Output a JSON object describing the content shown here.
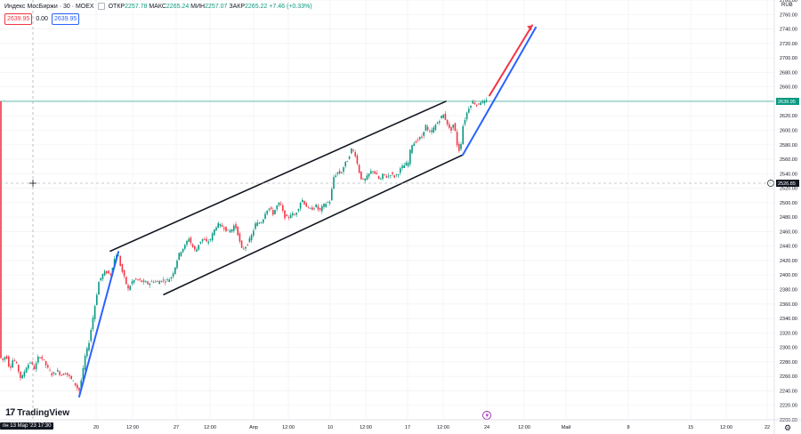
{
  "header": {
    "symbol": "Индекс МосБиржи · 30 · MOEX",
    "open_label": "ОТКР",
    "open": "2257.78",
    "high_label": "МАКС",
    "high": "2265.24",
    "low_label": "МИН",
    "low": "2257.07",
    "close_label": "ЗАКР",
    "close": "2265.22",
    "change": "+7.46 (+0.33%)"
  },
  "badges": {
    "left_price": "2639.95",
    "mid": "0.00",
    "right_price": "2639.95"
  },
  "branding": {
    "logo_text": "TradingView",
    "logo_mark": "17"
  },
  "crosshair_time": "пн 13 Мар '23  17:30",
  "currency": "RUB",
  "colors": {
    "up": "#089981",
    "down": "#f23645",
    "channel": "#131722",
    "impulse": "#2962ff",
    "target": "#f23645",
    "last_line": "#089981"
  },
  "chart_data": {
    "type": "candlestick",
    "title": "Индекс МосБиржи · 30 · MOEX",
    "ylim": [
      2200,
      2780
    ],
    "yticks": [
      2200,
      2220,
      2240,
      2260,
      2280,
      2300,
      2320,
      2340,
      2360,
      2380,
      2400,
      2420,
      2440,
      2460,
      2480,
      2500,
      2520,
      2540,
      2560,
      2580,
      2600,
      2620,
      2640,
      2660,
      2680,
      2700,
      2720,
      2740,
      2760,
      2780
    ],
    "x_axis_labels": [
      "20",
      "12:00",
      "27",
      "12:00",
      "Апр",
      "12:00",
      "10",
      "12:00",
      "17",
      "12:00",
      "24",
      "12:00",
      "Май",
      "8",
      "15",
      "12:00",
      "22"
    ],
    "last_price": "2639.95",
    "crosshair_price": "2526.85",
    "price_path": [
      [
        0,
        2288
      ],
      [
        4,
        2282
      ],
      [
        8,
        2290
      ],
      [
        12,
        2270
      ],
      [
        16,
        2285
      ],
      [
        20,
        2275
      ],
      [
        25,
        2255
      ],
      [
        30,
        2272
      ],
      [
        35,
        2280
      ],
      [
        40,
        2270
      ],
      [
        45,
        2290
      ],
      [
        50,
        2282
      ],
      [
        55,
        2270
      ],
      [
        60,
        2262
      ],
      [
        65,
        2268
      ],
      [
        70,
        2262
      ],
      [
        75,
        2265
      ],
      [
        80,
        2258
      ],
      [
        85,
        2250
      ],
      [
        90,
        2240
      ],
      [
        94,
        2265
      ],
      [
        97,
        2290
      ],
      [
        100,
        2300
      ],
      [
        104,
        2330
      ],
      [
        108,
        2360
      ],
      [
        112,
        2390
      ],
      [
        116,
        2400
      ],
      [
        120,
        2405
      ],
      [
        125,
        2400
      ],
      [
        129,
        2420
      ],
      [
        133,
        2432
      ],
      [
        137,
        2410
      ],
      [
        141,
        2395
      ],
      [
        145,
        2380
      ],
      [
        149,
        2390
      ],
      [
        153,
        2394
      ],
      [
        158,
        2392
      ],
      [
        163,
        2390
      ],
      [
        168,
        2388
      ],
      [
        173,
        2392
      ],
      [
        178,
        2390
      ],
      [
        183,
        2393
      ],
      [
        188,
        2392
      ],
      [
        193,
        2396
      ],
      [
        197,
        2408
      ],
      [
        201,
        2425
      ],
      [
        205,
        2435
      ],
      [
        209,
        2440
      ],
      [
        213,
        2452
      ],
      [
        217,
        2440
      ],
      [
        221,
        2432
      ],
      [
        225,
        2445
      ],
      [
        229,
        2450
      ],
      [
        233,
        2445
      ],
      [
        237,
        2448
      ],
      [
        241,
        2460
      ],
      [
        245,
        2470
      ],
      [
        249,
        2468
      ],
      [
        253,
        2466
      ],
      [
        257,
        2460
      ],
      [
        261,
        2462
      ],
      [
        265,
        2470
      ],
      [
        269,
        2455
      ],
      [
        272,
        2435
      ],
      [
        276,
        2438
      ],
      [
        280,
        2445
      ],
      [
        284,
        2455
      ],
      [
        288,
        2470
      ],
      [
        292,
        2472
      ],
      [
        296,
        2475
      ],
      [
        300,
        2490
      ],
      [
        304,
        2492
      ],
      [
        308,
        2485
      ],
      [
        312,
        2495
      ],
      [
        316,
        2500
      ],
      [
        320,
        2482
      ],
      [
        324,
        2478
      ],
      [
        328,
        2485
      ],
      [
        332,
        2482
      ],
      [
        336,
        2492
      ],
      [
        340,
        2505
      ],
      [
        344,
        2498
      ],
      [
        348,
        2490
      ],
      [
        352,
        2492
      ],
      [
        356,
        2496
      ],
      [
        360,
        2488
      ],
      [
        364,
        2495
      ],
      [
        368,
        2500
      ],
      [
        372,
        2502
      ],
      [
        376,
        2535
      ],
      [
        380,
        2542
      ],
      [
        384,
        2540
      ],
      [
        388,
        2552
      ],
      [
        392,
        2560
      ],
      [
        396,
        2574
      ],
      [
        400,
        2568
      ],
      [
        404,
        2545
      ],
      [
        408,
        2530
      ],
      [
        412,
        2532
      ],
      [
        416,
        2540
      ],
      [
        420,
        2545
      ],
      [
        424,
        2538
      ],
      [
        428,
        2530
      ],
      [
        432,
        2540
      ],
      [
        436,
        2535
      ],
      [
        440,
        2540
      ],
      [
        444,
        2536
      ],
      [
        448,
        2540
      ],
      [
        452,
        2548
      ],
      [
        456,
        2552
      ],
      [
        460,
        2555
      ],
      [
        463,
        2580
      ],
      [
        467,
        2583
      ],
      [
        471,
        2588
      ],
      [
        475,
        2590
      ],
      [
        479,
        2608
      ],
      [
        483,
        2595
      ],
      [
        487,
        2600
      ],
      [
        491,
        2608
      ],
      [
        495,
        2615
      ],
      [
        499,
        2622
      ],
      [
        503,
        2612
      ],
      [
        507,
        2598
      ],
      [
        511,
        2610
      ],
      [
        515,
        2578
      ],
      [
        518,
        2570
      ],
      [
        521,
        2605
      ],
      [
        525,
        2622
      ],
      [
        529,
        2635
      ],
      [
        533,
        2640
      ],
      [
        537,
        2634
      ],
      [
        541,
        2640
      ],
      [
        545,
        2638
      ],
      [
        548,
        2640
      ]
    ],
    "drawings": {
      "channel_upper": [
        [
          124,
          2433
        ],
        [
          501,
          2640
        ]
      ],
      "channel_lower": [
        [
          184,
          2373
        ],
        [
          520,
          2566
        ]
      ],
      "impulse_left": [
        [
          89,
          2232
        ],
        [
          133,
          2432
        ]
      ],
      "impulse_right": [
        [
          520,
          2566
        ],
        [
          602,
          2742
        ]
      ],
      "target_arrow": [
        [
          550,
          2648
        ],
        [
          598,
          2745
        ]
      ]
    }
  }
}
